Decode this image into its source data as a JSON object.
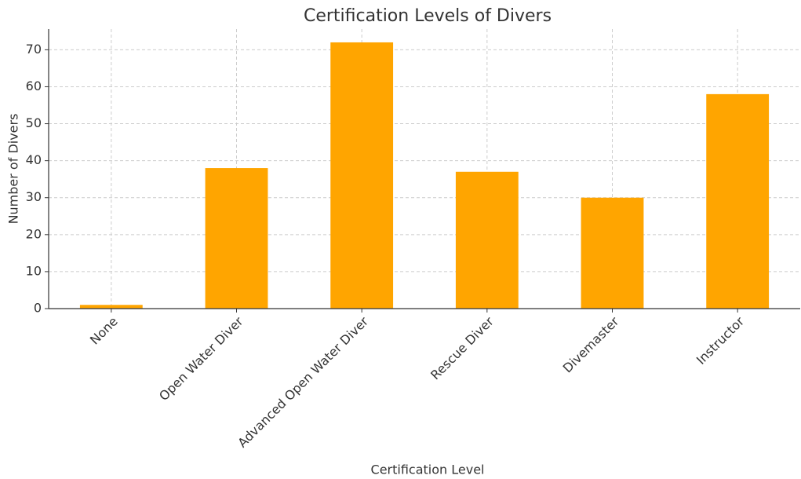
{
  "chart_data": {
    "type": "bar",
    "title": "Certification Levels of Divers",
    "x_label": "Certification Level",
    "y_label": "Number of Divers",
    "categories": [
      "None",
      "Open Water Diver",
      "Advanced Open Water Diver",
      "Rescue Diver",
      "Divemaster",
      "Instructor"
    ],
    "values": [
      1,
      38,
      72,
      37,
      30,
      58
    ],
    "color": "#ffa500",
    "ylim": [
      0,
      75.6
    ],
    "yticks": [
      0,
      10,
      20,
      30,
      40,
      50,
      60,
      70
    ],
    "grid": true
  }
}
